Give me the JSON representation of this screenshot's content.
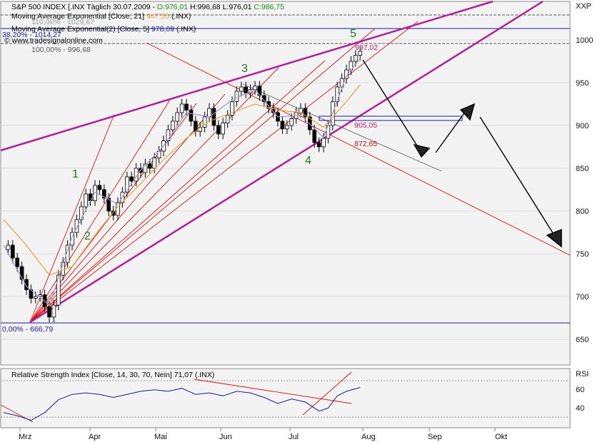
{
  "header": {
    "line1": {
      "prefix": "S&P 500 INDEX [.INX  Täglich  30.07.2009 -",
      "o": "O:976,01",
      "h": "H:996,68",
      "l": "L:976,01",
      "c": "C:986,75"
    },
    "line2": {
      "label": "Moving Average Exponential [Close, 21]",
      "value": "947,55",
      "ticker": "(.INX)"
    },
    "line3": {
      "label": "Moving Average Exponential(2) [Close, 5]",
      "value": "978,09",
      "ticker": "(.INX)"
    },
    "watermark": "© www.tradesignalonline.com"
  },
  "fib_labels": {
    "top_hidden": "110,00% - 1029,67",
    "f38": "38,20% - 1014,27",
    "f100": "100,00% - 996,68",
    "f0": "0,00% - 666,79"
  },
  "annotations": {
    "w1": "1",
    "w2": "2",
    "w3": "3",
    "w4": "4",
    "w5": "5",
    "level_997": "997,02",
    "level_905": "905,05",
    "level_872": "872,65"
  },
  "rsi_header": "Relative Strength Index [Close, 14, 30, 70, Nein] 71,07 (.INX)",
  "axis": {
    "price_unit": "XXP",
    "rsi_unit": "RSI",
    "price_ticks": [
      "1000",
      "950",
      "900",
      "850",
      "800",
      "750",
      "700",
      "650"
    ],
    "rsi_ticks": [
      "60",
      "40"
    ],
    "month_labels": [
      "Mrz",
      "Apr",
      "Mai",
      "Jun",
      "Jul",
      "Aug",
      "Sep",
      "Okt"
    ]
  },
  "colors": {
    "candle": "#000000",
    "ema21": "#e8a23a",
    "ema5": "#9a9acb",
    "channel": "#b0209a",
    "fan": "#e01010",
    "fib": "#1a1aa0",
    "arrow": "#000000",
    "label_green": "#1a7a1a",
    "label_purple": "#c0207a",
    "label_red": "#c01010"
  },
  "chart_data": {
    "type": "candlestick",
    "xlabel": "",
    "ylabel": "",
    "ylim": [
      620,
      1040
    ],
    "x_ticks": [
      "Mrz",
      "Apr",
      "Mai",
      "Jun",
      "Jul",
      "Aug",
      "Sep",
      "Okt"
    ],
    "price_path": [
      [
        0,
        755
      ],
      [
        2,
        760
      ],
      [
        4,
        745
      ],
      [
        6,
        735
      ],
      [
        8,
        720
      ],
      [
        10,
        708
      ],
      [
        12,
        698
      ],
      [
        14,
        700
      ],
      [
        16,
        702
      ],
      [
        18,
        688
      ],
      [
        20,
        676
      ],
      [
        22,
        690
      ],
      [
        24,
        725
      ],
      [
        26,
        740
      ],
      [
        28,
        760
      ],
      [
        30,
        775
      ],
      [
        32,
        790
      ],
      [
        34,
        805
      ],
      [
        36,
        820
      ],
      [
        38,
        812
      ],
      [
        40,
        830
      ],
      [
        42,
        825
      ],
      [
        44,
        815
      ],
      [
        46,
        800
      ],
      [
        48,
        795
      ],
      [
        50,
        810
      ],
      [
        52,
        822
      ],
      [
        54,
        840
      ],
      [
        56,
        835
      ],
      [
        58,
        850
      ],
      [
        60,
        845
      ],
      [
        62,
        855
      ],
      [
        64,
        850
      ],
      [
        66,
        862
      ],
      [
        68,
        870
      ],
      [
        70,
        882
      ],
      [
        72,
        895
      ],
      [
        74,
        905
      ],
      [
        76,
        915
      ],
      [
        78,
        925
      ],
      [
        80,
        918
      ],
      [
        82,
        905
      ],
      [
        84,
        893
      ],
      [
        86,
        898
      ],
      [
        88,
        910
      ],
      [
        90,
        920
      ],
      [
        92,
        900
      ],
      [
        94,
        890
      ],
      [
        96,
        903
      ],
      [
        98,
        912
      ],
      [
        100,
        928
      ],
      [
        102,
        940
      ],
      [
        104,
        945
      ],
      [
        106,
        938
      ],
      [
        108,
        942
      ],
      [
        110,
        946
      ],
      [
        112,
        935
      ],
      [
        114,
        928
      ],
      [
        116,
        920
      ],
      [
        118,
        915
      ],
      [
        120,
        905
      ],
      [
        122,
        896
      ],
      [
        124,
        900
      ],
      [
        126,
        908
      ],
      [
        128,
        915
      ],
      [
        130,
        920
      ],
      [
        132,
        910
      ],
      [
        134,
        895
      ],
      [
        136,
        880
      ],
      [
        138,
        875
      ],
      [
        140,
        885
      ],
      [
        142,
        900
      ],
      [
        144,
        928
      ],
      [
        146,
        945
      ],
      [
        148,
        955
      ],
      [
        150,
        965
      ],
      [
        152,
        975
      ],
      [
        154,
        982
      ],
      [
        156,
        986.75
      ]
    ],
    "ema21_path": [
      [
        0,
        790
      ],
      [
        10,
        760
      ],
      [
        20,
        725
      ],
      [
        30,
        735
      ],
      [
        40,
        772
      ],
      [
        50,
        805
      ],
      [
        60,
        832
      ],
      [
        70,
        860
      ],
      [
        80,
        885
      ],
      [
        90,
        905
      ],
      [
        100,
        915
      ],
      [
        110,
        925
      ],
      [
        120,
        918
      ],
      [
        130,
        915
      ],
      [
        140,
        898
      ],
      [
        150,
        928
      ],
      [
        156,
        947.55
      ]
    ],
    "ema5_path": [
      [
        0,
        760
      ],
      [
        10,
        712
      ],
      [
        20,
        690
      ],
      [
        30,
        770
      ],
      [
        40,
        822
      ],
      [
        50,
        808
      ],
      [
        60,
        848
      ],
      [
        70,
        876
      ],
      [
        80,
        915
      ],
      [
        90,
        910
      ],
      [
        100,
        930
      ],
      [
        110,
        942
      ],
      [
        120,
        910
      ],
      [
        130,
        912
      ],
      [
        140,
        886
      ],
      [
        150,
        958
      ],
      [
        156,
        978.09
      ]
    ],
    "fib_levels": [
      {
        "label": "110,00%",
        "value": 1029.67
      },
      {
        "label": "38,20%",
        "value": 1014.27
      },
      {
        "label": "100,00%",
        "value": 996.68
      },
      {
        "label": "0,00%",
        "value": 666.79
      }
    ],
    "wave_labels": [
      {
        "label": "1",
        "x": 25,
        "y": 828
      },
      {
        "label": "2",
        "x": 28,
        "y": 770
      },
      {
        "label": "3",
        "x": 108,
        "y": 955
      },
      {
        "label": "4",
        "x": 140,
        "y": 838
      },
      {
        "label": "5",
        "x": 161,
        "y": 1000
      }
    ],
    "levels": [
      {
        "label": "997,02",
        "value": 997.02
      },
      {
        "label": "905,05",
        "value": 905.05
      },
      {
        "label": "872,65",
        "value": 872.65
      }
    ],
    "rsi": {
      "ylim": [
        20,
        80
      ],
      "ticks": [
        60,
        40
      ],
      "path": [
        [
          0,
          38
        ],
        [
          6,
          34
        ],
        [
          12,
          28
        ],
        [
          18,
          38
        ],
        [
          24,
          55
        ],
        [
          30,
          62
        ],
        [
          36,
          64
        ],
        [
          42,
          62
        ],
        [
          48,
          58
        ],
        [
          54,
          62
        ],
        [
          60,
          66
        ],
        [
          66,
          68
        ],
        [
          72,
          66
        ],
        [
          78,
          70
        ],
        [
          84,
          62
        ],
        [
          90,
          64
        ],
        [
          96,
          60
        ],
        [
          102,
          66
        ],
        [
          108,
          64
        ],
        [
          114,
          58
        ],
        [
          120,
          50
        ],
        [
          126,
          56
        ],
        [
          132,
          52
        ],
        [
          138,
          40
        ],
        [
          142,
          44
        ],
        [
          146,
          60
        ],
        [
          150,
          66
        ],
        [
          156,
          71.07
        ]
      ]
    }
  }
}
